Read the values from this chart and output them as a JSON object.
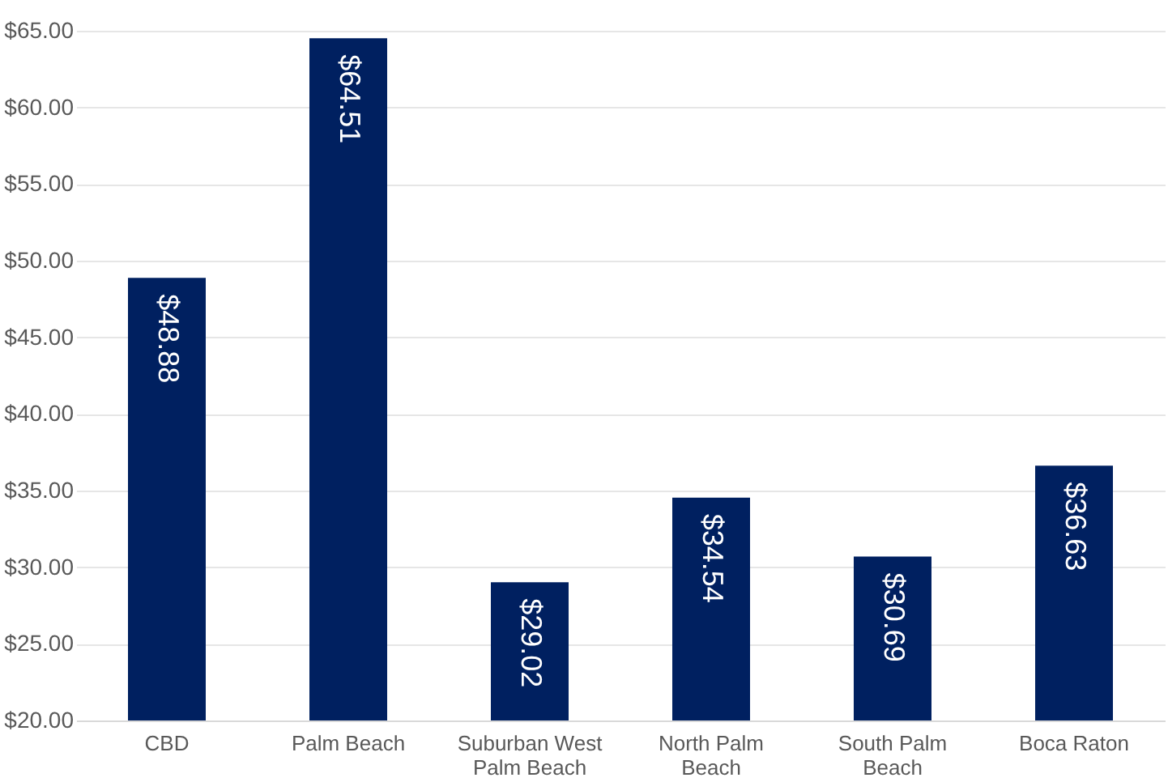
{
  "chart_data": {
    "type": "bar",
    "categories": [
      "CBD",
      "Palm Beach",
      "Suburban West Palm Beach",
      "North Palm Beach",
      "South Palm Beach",
      "Boca Raton"
    ],
    "values": [
      48.88,
      64.51,
      29.02,
      34.54,
      30.69,
      36.63
    ],
    "value_labels": [
      "$48.88",
      "$64.51",
      "$29.02",
      "$34.54",
      "$30.69",
      "$36.63"
    ],
    "color": "#002060",
    "ylim": [
      20,
      65
    ],
    "yticks": [
      {
        "value": 20,
        "label": "$20.00"
      },
      {
        "value": 25,
        "label": "$25.00"
      },
      {
        "value": 30,
        "label": "$30.00"
      },
      {
        "value": 35,
        "label": "$35.00"
      },
      {
        "value": 40,
        "label": "$40.00"
      },
      {
        "value": 45,
        "label": "$45.00"
      },
      {
        "value": 50,
        "label": "$50.00"
      },
      {
        "value": 55,
        "label": "$55.00"
      },
      {
        "value": 60,
        "label": "$60.00"
      },
      {
        "value": 65,
        "label": "$65.00"
      }
    ],
    "grid": "y"
  }
}
